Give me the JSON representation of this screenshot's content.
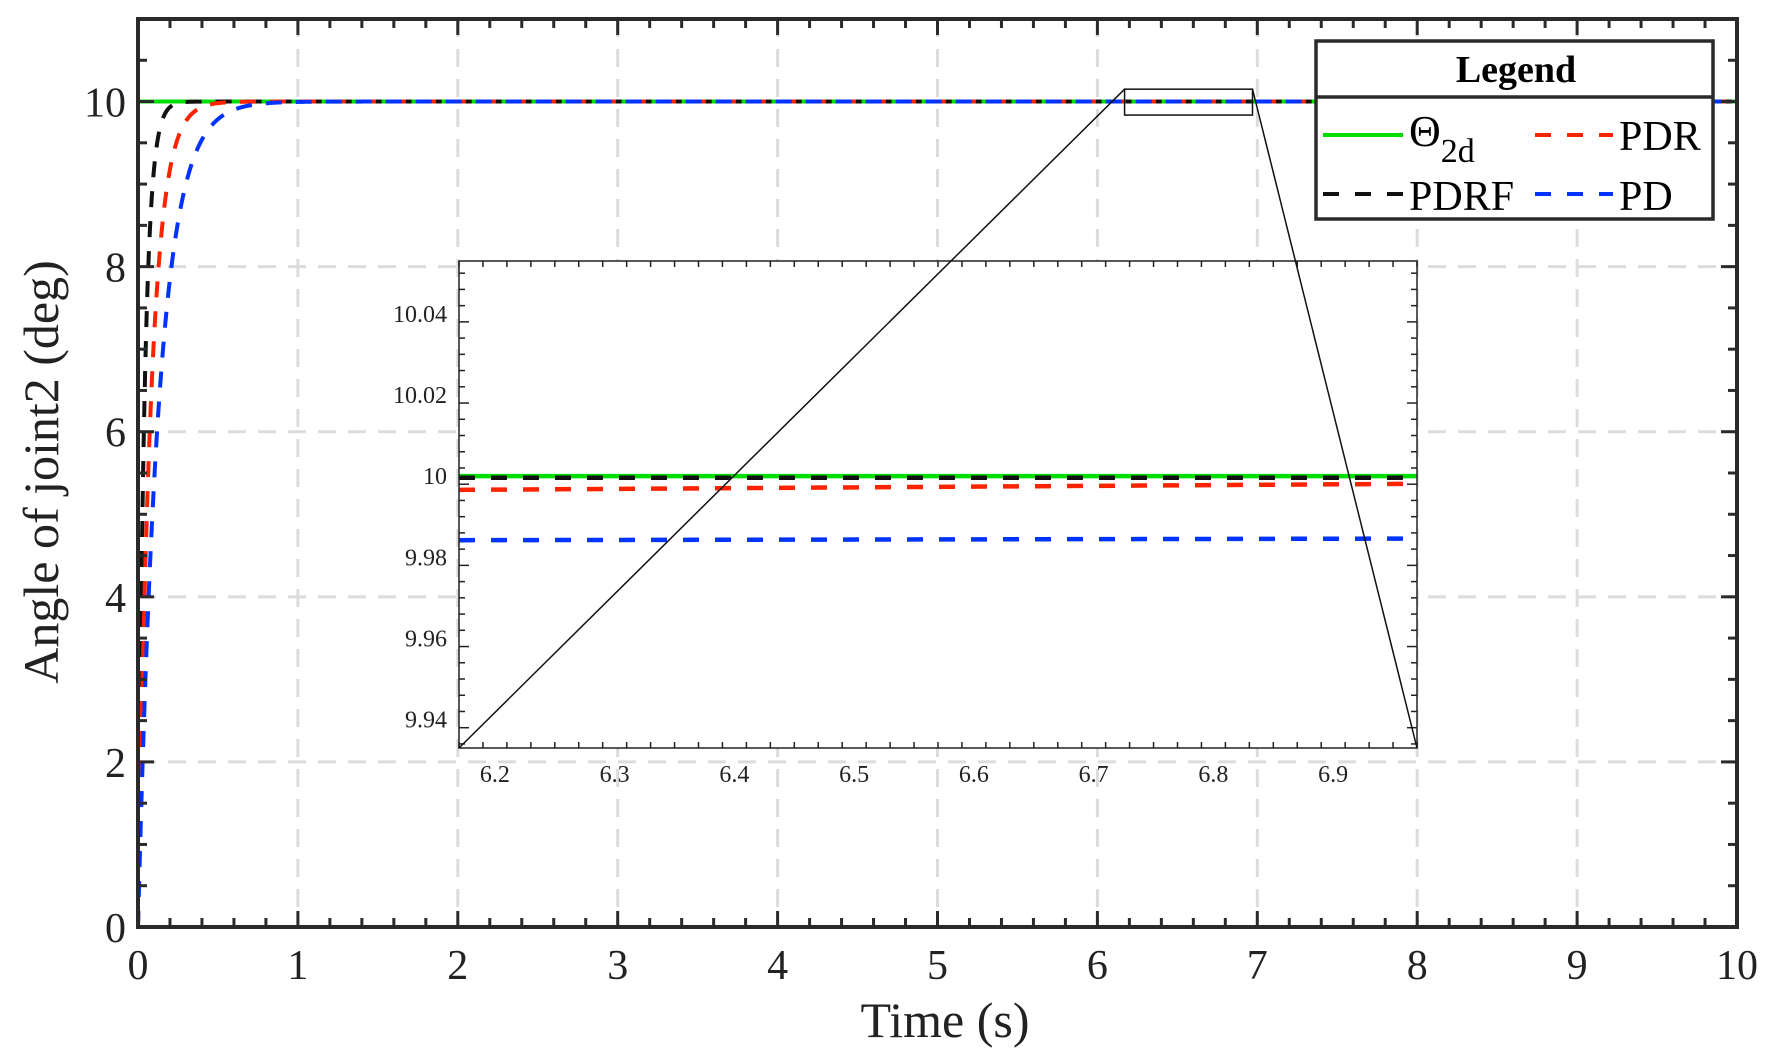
{
  "chart_data": {
    "type": "line",
    "title": "",
    "xlabel": "Time (s)",
    "ylabel": "Angle of joint2 (deg)",
    "xlim": [
      0,
      10
    ],
    "ylim": [
      0,
      11
    ],
    "xticks": [
      "0",
      "1",
      "2",
      "3",
      "4",
      "5",
      "6",
      "7",
      "8",
      "9",
      "10"
    ],
    "yticks": [
      "0",
      "2",
      "4",
      "6",
      "8",
      "10"
    ],
    "grid": true,
    "legend": {
      "title": "Legend",
      "placement": "top-right",
      "entries": [
        "Θ",
        "PDR",
        "PDRF",
        "PD"
      ],
      "theta_subscript": "2d"
    },
    "series": [
      {
        "name": "Θ2d",
        "color": "#00dd00",
        "style": "solid",
        "final": 10.0,
        "tau": 0
      },
      {
        "name": "PDR",
        "color": "#ff2200",
        "style": "dashed",
        "final": 10.0,
        "tau": 0.08
      },
      {
        "name": "PDRF",
        "color": "#111111",
        "style": "dashed",
        "final": 10.0,
        "tau": 0.04
      },
      {
        "name": "PD",
        "color": "#0033ff",
        "style": "dashed",
        "final": 10.0,
        "tau": 0.13
      }
    ],
    "inset": {
      "xlim": [
        6.17,
        6.97
      ],
      "ylim": [
        9.933,
        10.053
      ],
      "xticks": [
        "6.2",
        "6.3",
        "6.4",
        "6.5",
        "6.6",
        "6.7",
        "6.8",
        "6.9"
      ],
      "yticks": [
        "9.94",
        "9.96",
        "9.98",
        "10",
        "10.02",
        "10.04"
      ],
      "series_values": [
        {
          "name": "Θ2d",
          "start": 10.0,
          "end": 10.0
        },
        {
          "name": "PDR",
          "start": 9.9966,
          "end": 9.9981
        },
        {
          "name": "PDRF",
          "start": 9.9996,
          "end": 9.9996
        },
        {
          "name": "PD",
          "start": 9.9842,
          "end": 9.9846
        }
      ]
    }
  }
}
